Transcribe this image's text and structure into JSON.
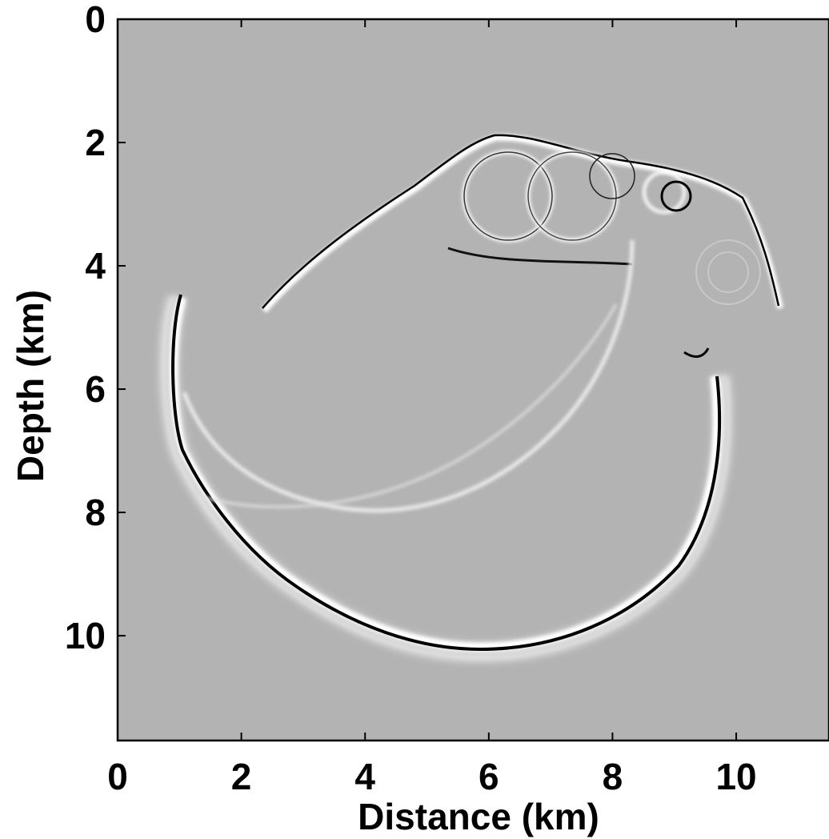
{
  "chart_data": {
    "type": "image",
    "xlabel": "Distance (km)",
    "ylabel": "Depth (km)",
    "xlim": [
      0,
      11.5
    ],
    "ylim": [
      0,
      11.7
    ],
    "xticks": [
      0,
      2,
      4,
      6,
      8,
      10
    ],
    "yticks": [
      0,
      2,
      4,
      6,
      8,
      10
    ],
    "y_inverted": true,
    "background": "#b3b3b3"
  }
}
